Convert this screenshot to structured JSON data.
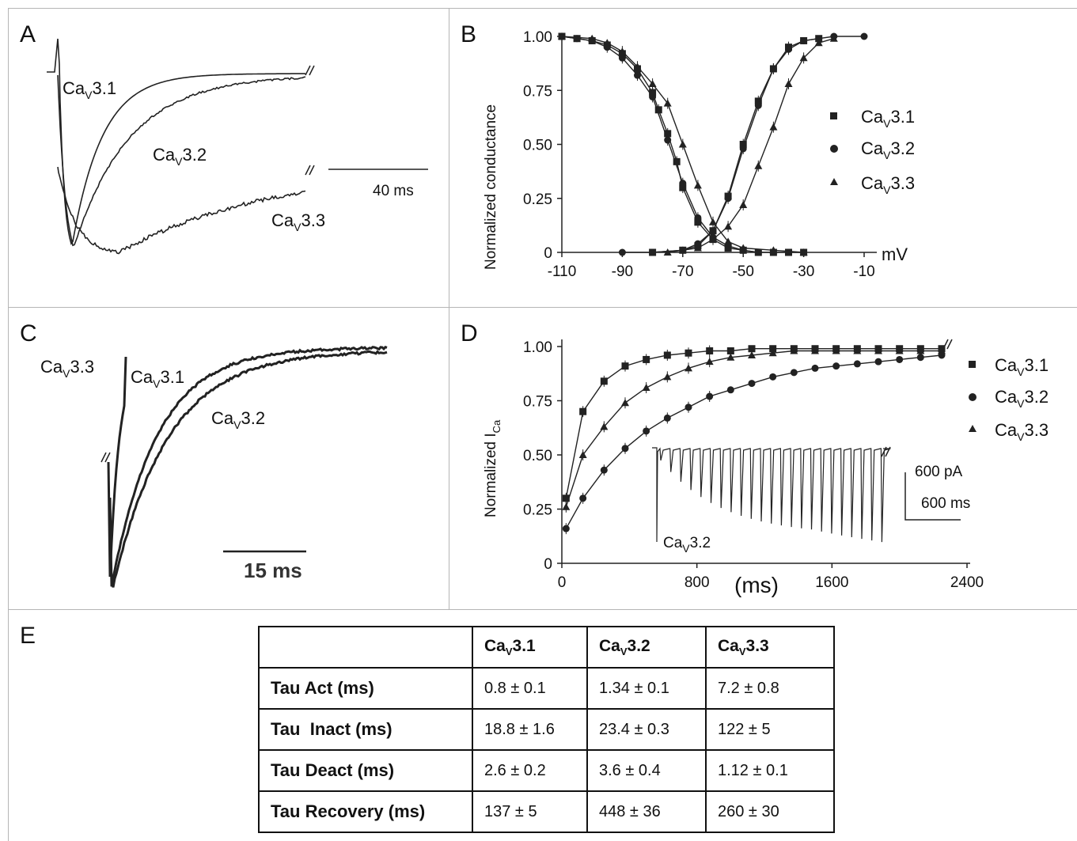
{
  "panels": {
    "A": {
      "label": "A",
      "traces": [
        {
          "prefix": "Ca",
          "sub": "V",
          "suffix": "3.1",
          "color": "#222222"
        },
        {
          "prefix": "Ca",
          "sub": "V",
          "suffix": "3.2",
          "color": "#222222"
        },
        {
          "prefix": "Ca",
          "sub": "V",
          "suffix": "3.3",
          "color": "#222222"
        }
      ],
      "scale_bar": "40 ms"
    },
    "C": {
      "label": "C",
      "traces": [
        {
          "prefix": "Ca",
          "sub": "V",
          "suffix": "3.3"
        },
        {
          "prefix": "Ca",
          "sub": "V",
          "suffix": "3.1"
        },
        {
          "prefix": "Ca",
          "sub": "V",
          "suffix": "3.2"
        }
      ],
      "scale_bar": "15 ms"
    },
    "E": {
      "label": "E"
    }
  },
  "chart_data": [
    {
      "panel": "B",
      "type": "scatter",
      "title": "",
      "xlabel": "mV",
      "ylabel": "Normalized conductance",
      "xlim": [
        -110,
        -10
      ],
      "ylim": [
        0,
        1.0
      ],
      "xticks": [
        "-110",
        "-90",
        "-70",
        "-50",
        "-30",
        "-10"
      ],
      "yticks": [
        "0",
        "0.25",
        "0.50",
        "0.75",
        "1.00"
      ],
      "legend_position": "right",
      "grid": false,
      "series": [
        {
          "name": "CaV3.1",
          "marker": "square",
          "curve": "inactivation",
          "x": [
            -110,
            -105,
            -100,
            -95,
            -90,
            -85,
            -80,
            -78,
            -75,
            -72,
            -70,
            -65,
            -60,
            -55,
            -50,
            -45,
            -40,
            -35,
            -30
          ],
          "y": [
            1.0,
            0.99,
            0.98,
            0.96,
            0.92,
            0.85,
            0.74,
            0.66,
            0.55,
            0.42,
            0.3,
            0.14,
            0.06,
            0.02,
            0.01,
            0.0,
            0.0,
            0.0,
            0.0
          ]
        },
        {
          "name": "CaV3.1",
          "marker": "square",
          "curve": "activation",
          "x": [
            -80,
            -70,
            -65,
            -60,
            -55,
            -50,
            -45,
            -40,
            -35,
            -30,
            -25
          ],
          "y": [
            0.0,
            0.01,
            0.03,
            0.1,
            0.26,
            0.5,
            0.7,
            0.85,
            0.95,
            0.98,
            0.99
          ]
        },
        {
          "name": "CaV3.2",
          "marker": "circle",
          "curve": "inactivation",
          "x": [
            -110,
            -105,
            -100,
            -95,
            -90,
            -85,
            -80,
            -75,
            -70,
            -65,
            -60,
            -55,
            -50,
            -45
          ],
          "y": [
            1.0,
            0.99,
            0.98,
            0.95,
            0.9,
            0.82,
            0.72,
            0.52,
            0.32,
            0.16,
            0.07,
            0.03,
            0.01,
            0.0
          ]
        },
        {
          "name": "CaV3.2",
          "marker": "circle",
          "curve": "activation",
          "x": [
            -90,
            -80,
            -70,
            -65,
            -60,
            -55,
            -50,
            -45,
            -40,
            -35,
            -30,
            -20,
            -10
          ],
          "y": [
            0.0,
            0.0,
            0.01,
            0.04,
            0.1,
            0.25,
            0.48,
            0.68,
            0.85,
            0.94,
            0.98,
            1.0,
            1.0
          ]
        },
        {
          "name": "CaV3.3",
          "marker": "triangle",
          "curve": "inactivation",
          "x": [
            -110,
            -100,
            -95,
            -90,
            -85,
            -80,
            -75,
            -70,
            -65,
            -60,
            -55,
            -50,
            -40,
            -30
          ],
          "y": [
            1.0,
            0.99,
            0.97,
            0.93,
            0.86,
            0.78,
            0.69,
            0.5,
            0.31,
            0.14,
            0.05,
            0.02,
            0.01,
            0.0
          ]
        },
        {
          "name": "CaV3.3",
          "marker": "triangle",
          "curve": "activation",
          "x": [
            -75,
            -65,
            -60,
            -55,
            -50,
            -45,
            -40,
            -35,
            -30,
            -25,
            -20
          ],
          "y": [
            0.0,
            0.02,
            0.06,
            0.12,
            0.22,
            0.4,
            0.58,
            0.78,
            0.9,
            0.97,
            0.99
          ]
        }
      ],
      "legend": [
        {
          "prefix": "Ca",
          "sub": "V",
          "suffix": "3.1",
          "marker": "square"
        },
        {
          "prefix": "Ca",
          "sub": "V",
          "suffix": "3.2",
          "marker": "circle"
        },
        {
          "prefix": "Ca",
          "sub": "V",
          "suffix": "3.3",
          "marker": "triangle"
        }
      ]
    },
    {
      "panel": "D",
      "type": "scatter",
      "title": "",
      "xlabel": "(ms)",
      "ylabel": "Normalized I",
      "ylabel_sub": "Ca",
      "xlim": [
        0,
        2400
      ],
      "ylim": [
        0,
        1.0
      ],
      "xticks": [
        "0",
        "800",
        "1600",
        "2400"
      ],
      "yticks": [
        "0",
        "0.25",
        "0.50",
        "0.75",
        "1.00"
      ],
      "legend_position": "right",
      "grid": false,
      "series": [
        {
          "name": "CaV3.1",
          "marker": "square",
          "x": [
            25,
            125,
            250,
            375,
            500,
            625,
            750,
            875,
            1000,
            1125,
            1250,
            1375,
            1500,
            1625,
            1750,
            1875,
            2000,
            2125,
            2250
          ],
          "y": [
            0.3,
            0.7,
            0.84,
            0.91,
            0.94,
            0.96,
            0.97,
            0.98,
            0.98,
            0.99,
            0.99,
            0.99,
            0.99,
            0.99,
            0.99,
            0.99,
            0.99,
            0.99,
            0.99
          ]
        },
        {
          "name": "CaV3.2",
          "marker": "circle",
          "x": [
            25,
            125,
            250,
            375,
            500,
            625,
            750,
            875,
            1000,
            1125,
            1250,
            1375,
            1500,
            1625,
            1750,
            1875,
            2000,
            2125,
            2250
          ],
          "y": [
            0.16,
            0.3,
            0.43,
            0.53,
            0.61,
            0.67,
            0.72,
            0.77,
            0.8,
            0.83,
            0.86,
            0.88,
            0.9,
            0.91,
            0.92,
            0.93,
            0.94,
            0.95,
            0.96
          ]
        },
        {
          "name": "CaV3.3",
          "marker": "triangle",
          "x": [
            25,
            125,
            250,
            375,
            500,
            625,
            750,
            875,
            1000,
            1125,
            1250,
            1375,
            1500,
            1625,
            1750,
            1875,
            2000,
            2125,
            2250
          ],
          "y": [
            0.26,
            0.5,
            0.63,
            0.74,
            0.81,
            0.86,
            0.9,
            0.93,
            0.95,
            0.96,
            0.97,
            0.98,
            0.98,
            0.98,
            0.98,
            0.98,
            0.98,
            0.98,
            0.98
          ]
        }
      ],
      "legend": [
        {
          "prefix": "Ca",
          "sub": "V",
          "suffix": "3.1",
          "marker": "square"
        },
        {
          "prefix": "Ca",
          "sub": "V",
          "suffix": "3.2",
          "marker": "circle"
        },
        {
          "prefix": "Ca",
          "sub": "V",
          "suffix": "3.3",
          "marker": "triangle"
        }
      ],
      "inset": {
        "trace": {
          "prefix": "Ca",
          "sub": "V",
          "suffix": "3.2"
        },
        "scale_current": "600 pA",
        "scale_time": "600 ms"
      }
    },
    {
      "panel": "E",
      "type": "table",
      "columns": [
        {
          "prefix": "Ca",
          "sub": "V",
          "suffix": "3.1"
        },
        {
          "prefix": "Ca",
          "sub": "V",
          "suffix": "3.2"
        },
        {
          "prefix": "Ca",
          "sub": "V",
          "suffix": "3.3"
        }
      ],
      "rows": [
        {
          "label": "Tau Act (ms)",
          "values": [
            "0.8 ± 0.1",
            "1.34 ± 0.1",
            "7.2 ± 0.8"
          ]
        },
        {
          "label": "Tau  Inact (ms)",
          "values": [
            "18.8 ± 1.6",
            "23.4 ± 0.3",
            "122 ± 5"
          ]
        },
        {
          "label": "Tau Deact (ms)",
          "values": [
            "2.6 ± 0.2",
            "3.6 ± 0.4",
            "1.12 ± 0.1"
          ]
        },
        {
          "label": "Tau Recovery (ms)",
          "values": [
            "137 ± 5",
            "448 ± 36",
            "260 ± 30"
          ]
        }
      ]
    }
  ]
}
